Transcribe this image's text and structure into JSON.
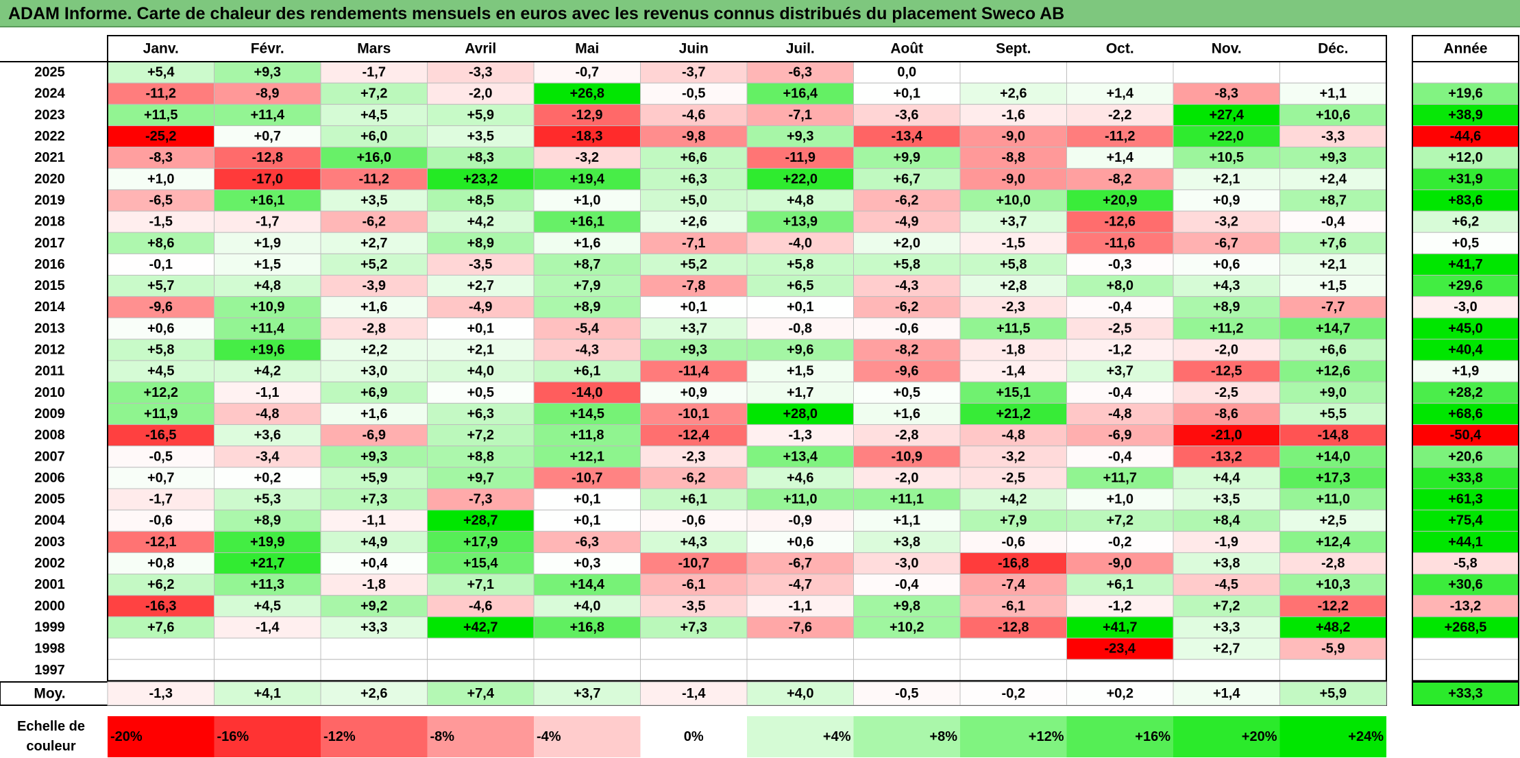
{
  "title": "ADAM Informe. Carte de chaleur des rendements mensuels en euros avec les revenus connus distribués du placement Sweco AB",
  "chart_data": {
    "type": "heatmap",
    "title": "ADAM Informe. Carte de chaleur des rendements mensuels en euros avec les revenus connus distribués du placement Sweco AB",
    "columns": [
      "Janv.",
      "Févr.",
      "Mars",
      "Avril",
      "Mai",
      "Juin",
      "Juil.",
      "Août",
      "Sept.",
      "Oct.",
      "Nov.",
      "Déc."
    ],
    "annual_header": "Année",
    "rows": [
      {
        "year": "2025",
        "values": [
          "+5,4",
          "+9,3",
          "-1,7",
          "-3,3",
          "-0,7",
          "-3,7",
          "-6,3",
          "0,0",
          "",
          "",
          "",
          ""
        ],
        "annual": ""
      },
      {
        "year": "2024",
        "values": [
          "-11,2",
          "-8,9",
          "+7,2",
          "-2,0",
          "+26,8",
          "-0,5",
          "+16,4",
          "+0,1",
          "+2,6",
          "+1,4",
          "-8,3",
          "+1,1"
        ],
        "annual": "+19,6"
      },
      {
        "year": "2023",
        "values": [
          "+11,5",
          "+11,4",
          "+4,5",
          "+5,9",
          "-12,9",
          "-4,6",
          "-7,1",
          "-3,6",
          "-1,6",
          "-2,2",
          "+27,4",
          "+10,6"
        ],
        "annual": "+38,9"
      },
      {
        "year": "2022",
        "values": [
          "-25,2",
          "+0,7",
          "+6,0",
          "+3,5",
          "-18,3",
          "-9,8",
          "+9,3",
          "-13,4",
          "-9,0",
          "-11,2",
          "+22,0",
          "-3,3"
        ],
        "annual": "-44,6"
      },
      {
        "year": "2021",
        "values": [
          "-8,3",
          "-12,8",
          "+16,0",
          "+8,3",
          "-3,2",
          "+6,6",
          "-11,9",
          "+9,9",
          "-8,8",
          "+1,4",
          "+10,5",
          "+9,3"
        ],
        "annual": "+12,0"
      },
      {
        "year": "2020",
        "values": [
          "+1,0",
          "-17,0",
          "-11,2",
          "+23,2",
          "+19,4",
          "+6,3",
          "+22,0",
          "+6,7",
          "-9,0",
          "-8,2",
          "+2,1",
          "+2,4"
        ],
        "annual": "+31,9"
      },
      {
        "year": "2019",
        "values": [
          "-6,5",
          "+16,1",
          "+3,5",
          "+8,5",
          "+1,0",
          "+5,0",
          "+4,8",
          "-6,2",
          "+10,0",
          "+20,9",
          "+0,9",
          "+8,7"
        ],
        "annual": "+83,6"
      },
      {
        "year": "2018",
        "values": [
          "-1,5",
          "-1,7",
          "-6,2",
          "+4,2",
          "+16,1",
          "+2,6",
          "+13,9",
          "-4,9",
          "+3,7",
          "-12,6",
          "-3,2",
          "-0,4"
        ],
        "annual": "+6,2"
      },
      {
        "year": "2017",
        "values": [
          "+8,6",
          "+1,9",
          "+2,7",
          "+8,9",
          "+1,6",
          "-7,1",
          "-4,0",
          "+2,0",
          "-1,5",
          "-11,6",
          "-6,7",
          "+7,6"
        ],
        "annual": "+0,5"
      },
      {
        "year": "2016",
        "values": [
          "-0,1",
          "+1,5",
          "+5,2",
          "-3,5",
          "+8,7",
          "+5,2",
          "+5,8",
          "+5,8",
          "+5,8",
          "-0,3",
          "+0,6",
          "+2,1"
        ],
        "annual": "+41,7"
      },
      {
        "year": "2015",
        "values": [
          "+5,7",
          "+4,8",
          "-3,9",
          "+2,7",
          "+7,9",
          "-7,8",
          "+6,5",
          "-4,3",
          "+2,8",
          "+8,0",
          "+4,3",
          "+1,5"
        ],
        "annual": "+29,6"
      },
      {
        "year": "2014",
        "values": [
          "-9,6",
          "+10,9",
          "+1,6",
          "-4,9",
          "+8,9",
          "+0,1",
          "+0,1",
          "-6,2",
          "-2,3",
          "-0,4",
          "+8,9",
          "-7,7"
        ],
        "annual": "-3,0"
      },
      {
        "year": "2013",
        "values": [
          "+0,6",
          "+11,4",
          "-2,8",
          "+0,1",
          "-5,4",
          "+3,7",
          "-0,8",
          "-0,6",
          "+11,5",
          "-2,5",
          "+11,2",
          "+14,7"
        ],
        "annual": "+45,0"
      },
      {
        "year": "2012",
        "values": [
          "+5,8",
          "+19,6",
          "+2,2",
          "+2,1",
          "-4,3",
          "+9,3",
          "+9,6",
          "-8,2",
          "-1,8",
          "-1,2",
          "-2,0",
          "+6,6"
        ],
        "annual": "+40,4"
      },
      {
        "year": "2011",
        "values": [
          "+4,5",
          "+4,2",
          "+3,0",
          "+4,0",
          "+6,1",
          "-11,4",
          "+1,5",
          "-9,6",
          "-1,4",
          "+3,7",
          "-12,5",
          "+12,6"
        ],
        "annual": "+1,9"
      },
      {
        "year": "2010",
        "values": [
          "+12,2",
          "-1,1",
          "+6,9",
          "+0,5",
          "-14,0",
          "+0,9",
          "+1,7",
          "+0,5",
          "+15,1",
          "-0,4",
          "-2,5",
          "+9,0"
        ],
        "annual": "+28,2"
      },
      {
        "year": "2009",
        "values": [
          "+11,9",
          "-4,8",
          "+1,6",
          "+6,3",
          "+14,5",
          "-10,1",
          "+28,0",
          "+1,6",
          "+21,2",
          "-4,8",
          "-8,6",
          "+5,5"
        ],
        "annual": "+68,6"
      },
      {
        "year": "2008",
        "values": [
          "-16,5",
          "+3,6",
          "-6,9",
          "+7,2",
          "+11,8",
          "-12,4",
          "-1,3",
          "-2,8",
          "-4,8",
          "-6,9",
          "-21,0",
          "-14,8"
        ],
        "annual": "-50,4"
      },
      {
        "year": "2007",
        "values": [
          "-0,5",
          "-3,4",
          "+9,3",
          "+8,8",
          "+12,1",
          "-2,3",
          "+13,4",
          "-10,9",
          "-3,2",
          "-0,4",
          "-13,2",
          "+14,0"
        ],
        "annual": "+20,6"
      },
      {
        "year": "2006",
        "values": [
          "+0,7",
          "+0,2",
          "+5,9",
          "+9,7",
          "-10,7",
          "-6,2",
          "+4,6",
          "-2,0",
          "-2,5",
          "+11,7",
          "+4,4",
          "+17,3"
        ],
        "annual": "+33,8"
      },
      {
        "year": "2005",
        "values": [
          "-1,7",
          "+5,3",
          "+7,3",
          "-7,3",
          "+0,1",
          "+6,1",
          "+11,0",
          "+11,1",
          "+4,2",
          "+1,0",
          "+3,5",
          "+11,0"
        ],
        "annual": "+61,3"
      },
      {
        "year": "2004",
        "values": [
          "-0,6",
          "+8,9",
          "-1,1",
          "+28,7",
          "+0,1",
          "-0,6",
          "-0,9",
          "+1,1",
          "+7,9",
          "+7,2",
          "+8,4",
          "+2,5"
        ],
        "annual": "+75,4"
      },
      {
        "year": "2003",
        "values": [
          "-12,1",
          "+19,9",
          "+4,9",
          "+17,9",
          "-6,3",
          "+4,3",
          "+0,6",
          "+3,8",
          "-0,6",
          "-0,2",
          "-1,9",
          "+12,4"
        ],
        "annual": "+44,1"
      },
      {
        "year": "2002",
        "values": [
          "+0,8",
          "+21,7",
          "+0,4",
          "+15,4",
          "+0,3",
          "-10,7",
          "-6,7",
          "-3,0",
          "-16,8",
          "-9,0",
          "+3,8",
          "-2,8"
        ],
        "annual": "-5,8"
      },
      {
        "year": "2001",
        "values": [
          "+6,2",
          "+11,3",
          "-1,8",
          "+7,1",
          "+14,4",
          "-6,1",
          "-4,7",
          "-0,4",
          "-7,4",
          "+6,1",
          "-4,5",
          "+10,3"
        ],
        "annual": "+30,6"
      },
      {
        "year": "2000",
        "values": [
          "-16,3",
          "+4,5",
          "+9,2",
          "-4,6",
          "+4,0",
          "-3,5",
          "-1,1",
          "+9,8",
          "-6,1",
          "-1,2",
          "+7,2",
          "-12,2"
        ],
        "annual": "-13,2"
      },
      {
        "year": "1999",
        "values": [
          "+7,6",
          "-1,4",
          "+3,3",
          "+42,7",
          "+16,8",
          "+7,3",
          "-7,6",
          "+10,2",
          "-12,8",
          "+41,7",
          "+3,3",
          "+48,2"
        ],
        "annual": "+268,5"
      },
      {
        "year": "1998",
        "values": [
          "",
          "",
          "",
          "",
          "",
          "",
          "",
          "",
          "",
          "-23,4",
          "+2,7",
          "-5,9"
        ],
        "annual": ""
      },
      {
        "year": "1997",
        "values": [
          "",
          "",
          "",
          "",
          "",
          "",
          "",
          "",
          "",
          "",
          "",
          ""
        ],
        "annual": ""
      }
    ],
    "average": {
      "label": "Moy.",
      "values": [
        "-1,3",
        "+4,1",
        "+2,6",
        "+7,4",
        "+3,7",
        "-1,4",
        "+4,0",
        "-0,5",
        "-0,2",
        "+0,2",
        "+1,4",
        "+5,9"
      ],
      "annual": "+33,3"
    },
    "scale": {
      "label_line1": "Echelle de",
      "label_line2": "couleur",
      "steps": [
        "-20%",
        "-16%",
        "-12%",
        "-8%",
        "-4%",
        "0%",
        "+4%",
        "+8%",
        "+12%",
        "+16%",
        "+20%",
        "+24%"
      ]
    },
    "colors": {
      "title_bar": "#7ec77e",
      "negative_max": "#ff0000",
      "neutral": "#ffffff",
      "positive_max": "#00e000",
      "grid": "#b0b0b0"
    }
  }
}
